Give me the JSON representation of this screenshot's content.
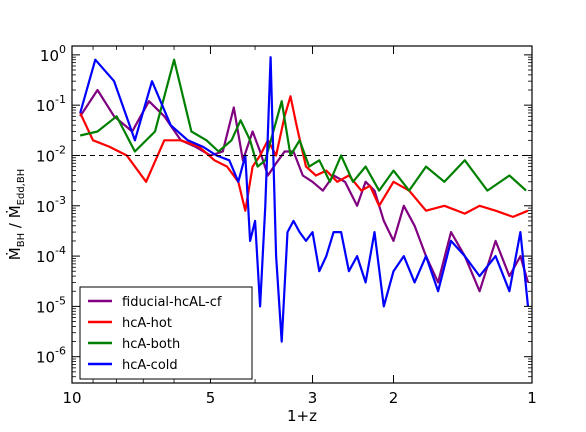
{
  "chart_data": {
    "type": "line",
    "title": "",
    "xlabel": "1+z",
    "ylabel": {
      "main": "Ṁ",
      "sub1": "BH",
      "sep": " / Ṁ",
      "sub2": "Edd,BH"
    },
    "x_scale": "log",
    "x_reversed": true,
    "xlim": [
      10,
      1
    ],
    "y_scale": "log",
    "ylim": [
      3e-07,
      1.5
    ],
    "x_ticks": [
      {
        "value": 10,
        "label": "10"
      },
      {
        "value": 5,
        "label": "5"
      },
      {
        "value": 3,
        "label": "3"
      },
      {
        "value": 2,
        "label": "2"
      },
      {
        "value": 1,
        "label": "1"
      }
    ],
    "y_ticks": [
      {
        "value": 1,
        "base": "10",
        "exp": "0"
      },
      {
        "value": 0.1,
        "base": "10",
        "exp": "-1"
      },
      {
        "value": 0.01,
        "base": "10",
        "exp": "-2"
      },
      {
        "value": 0.001,
        "base": "10",
        "exp": "-3"
      },
      {
        "value": 0.0001,
        "base": "10",
        "exp": "-4"
      },
      {
        "value": 1e-05,
        "base": "10",
        "exp": "-5"
      },
      {
        "value": 1e-06,
        "base": "10",
        "exp": "-6"
      }
    ],
    "reference_line": {
      "y": 0.01,
      "style": "dashed",
      "color": "#000000"
    },
    "grid": false,
    "legend_position": "bottom-left",
    "series": [
      {
        "name": "fiducial-hcAL-cf",
        "color": "#800080",
        "x": [
          9.6,
          8.8,
          8.1,
          7.4,
          6.8,
          6.3,
          5.8,
          5.4,
          5.0,
          4.7,
          4.45,
          4.25,
          4.05,
          3.9,
          3.75,
          3.6,
          3.45,
          3.3,
          3.15,
          3.0,
          2.85,
          2.7,
          2.55,
          2.4,
          2.3,
          2.2,
          2.1,
          2.0,
          1.9,
          1.8,
          1.7,
          1.6,
          1.5,
          1.4,
          1.3,
          1.2,
          1.12,
          1.06,
          1.02
        ],
        "y": [
          0.06,
          0.2,
          0.06,
          0.03,
          0.12,
          0.06,
          0.02,
          0.015,
          0.01,
          0.012,
          0.09,
          0.008,
          0.03,
          0.012,
          0.004,
          0.007,
          0.012,
          0.012,
          0.004,
          0.003,
          0.002,
          0.004,
          0.003,
          0.001,
          0.003,
          0.002,
          0.0005,
          0.0002,
          0.001,
          0.0004,
          0.0001,
          3e-05,
          0.0003,
          0.0001,
          2e-05,
          0.0002,
          4e-05,
          0.0001,
          3e-05
        ]
      },
      {
        "name": "hcA-hot",
        "color": "#ff0000",
        "x": [
          9.6,
          9.0,
          8.3,
          7.6,
          6.9,
          6.3,
          5.8,
          5.3,
          4.9,
          4.6,
          4.35,
          4.2,
          4.05,
          3.9,
          3.75,
          3.6,
          3.45,
          3.35,
          3.25,
          3.1,
          2.95,
          2.8,
          2.65,
          2.5,
          2.35,
          2.25,
          2.15,
          2.0,
          1.85,
          1.7,
          1.55,
          1.4,
          1.3,
          1.2,
          1.1,
          1.02
        ],
        "y": [
          0.07,
          0.02,
          0.015,
          0.01,
          0.003,
          0.02,
          0.02,
          0.015,
          0.008,
          0.006,
          0.003,
          0.0008,
          0.006,
          0.01,
          0.02,
          0.01,
          0.06,
          0.15,
          0.04,
          0.006,
          0.004,
          0.005,
          0.003,
          0.004,
          0.002,
          0.0025,
          0.001,
          0.003,
          0.002,
          0.0008,
          0.001,
          0.0007,
          0.001,
          0.0008,
          0.0006,
          0.0008
        ]
      },
      {
        "name": "hcA-both",
        "color": "#008000",
        "x": [
          9.6,
          8.8,
          8.0,
          7.3,
          6.6,
          6.0,
          5.5,
          5.1,
          4.8,
          4.5,
          4.3,
          4.1,
          3.95,
          3.8,
          3.65,
          3.5,
          3.35,
          3.2,
          3.05,
          2.9,
          2.75,
          2.6,
          2.45,
          2.3,
          2.15,
          2.0,
          1.85,
          1.7,
          1.55,
          1.4,
          1.25,
          1.12,
          1.03
        ],
        "y": [
          0.025,
          0.03,
          0.06,
          0.012,
          0.03,
          0.8,
          0.03,
          0.02,
          0.012,
          0.02,
          0.05,
          0.02,
          0.006,
          0.008,
          0.03,
          0.12,
          0.01,
          0.02,
          0.006,
          0.008,
          0.003,
          0.01,
          0.003,
          0.006,
          0.002,
          0.005,
          0.002,
          0.006,
          0.003,
          0.008,
          0.002,
          0.004,
          0.002
        ]
      },
      {
        "name": "hcA-cold",
        "color": "#0000ff",
        "x": [
          9.6,
          8.9,
          8.1,
          7.3,
          6.7,
          6.1,
          5.6,
          5.2,
          4.85,
          4.55,
          4.35,
          4.2,
          4.1,
          4.0,
          3.9,
          3.8,
          3.7,
          3.6,
          3.5,
          3.4,
          3.3,
          3.2,
          3.1,
          3.0,
          2.9,
          2.8,
          2.7,
          2.6,
          2.5,
          2.4,
          2.3,
          2.2,
          2.1,
          2.0,
          1.9,
          1.8,
          1.7,
          1.6,
          1.5,
          1.4,
          1.3,
          1.2,
          1.12,
          1.06,
          1.02
        ],
        "y": [
          0.07,
          0.8,
          0.3,
          0.02,
          0.3,
          0.04,
          0.02,
          0.015,
          0.01,
          0.008,
          0.003,
          0.01,
          0.0002,
          0.0005,
          1e-05,
          0.001,
          0.9,
          0.0001,
          2e-06,
          0.0003,
          0.0005,
          0.0003,
          0.0002,
          0.0003,
          5e-05,
          0.0001,
          0.0003,
          0.0003,
          5e-05,
          0.0001,
          3e-05,
          0.0003,
          1e-05,
          5e-05,
          0.0001,
          3e-05,
          0.0001,
          2e-05,
          0.0002,
          0.0001,
          4e-05,
          0.0001,
          2e-05,
          0.0003,
          1e-05
        ]
      }
    ]
  }
}
